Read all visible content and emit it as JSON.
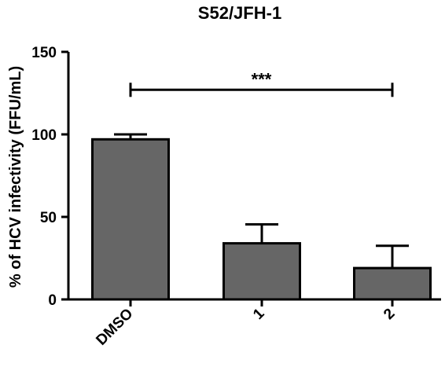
{
  "chart_data": {
    "type": "bar",
    "title": "S52/JFH-1",
    "xlabel": "",
    "ylabel": "% of HCV infectivity (FFU/mL)",
    "categories": [
      "DMSO",
      "1",
      "2"
    ],
    "values": [
      97,
      34,
      19
    ],
    "error_upper": [
      3,
      11.5,
      13.5
    ],
    "ylim": [
      0,
      150
    ],
    "yticks": [
      0,
      50,
      100,
      150
    ],
    "bar_color": "#666666",
    "grid": false,
    "legend": "none",
    "significance": {
      "label": "***",
      "from_category": "DMSO",
      "to_category": "2",
      "level": 127
    }
  }
}
